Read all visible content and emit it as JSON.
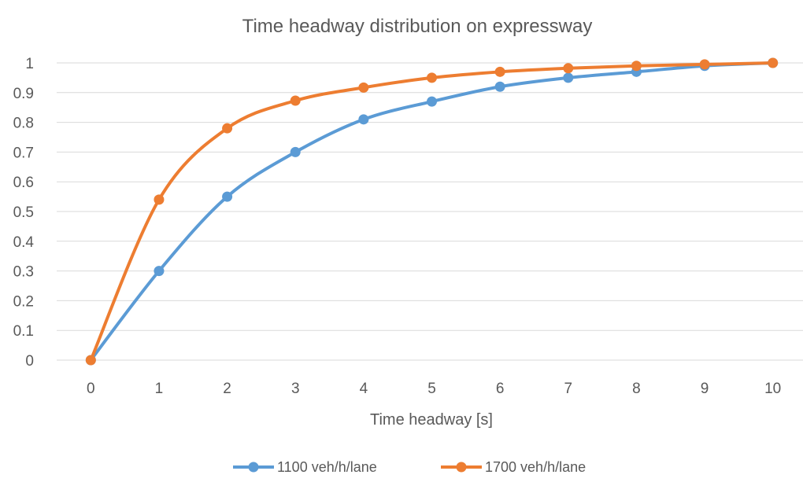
{
  "chart_data": {
    "type": "line",
    "title": "Time headway distribution on expressway",
    "xlabel": "Time headway [s]",
    "ylabel": "",
    "x": [
      0,
      1,
      2,
      3,
      4,
      5,
      6,
      7,
      8,
      9,
      10
    ],
    "ylim": [
      0,
      1
    ],
    "yticks": [
      "0",
      "0.1",
      "0.2",
      "0.3",
      "0.4",
      "0.5",
      "0.6",
      "0.7",
      "0.8",
      "0.9",
      "1"
    ],
    "grid": "horizontal",
    "smooth": true,
    "legend_position": "bottom",
    "series": [
      {
        "name": "1100 veh/h/lane",
        "color": "#5b9bd5",
        "values": [
          0,
          0.3,
          0.55,
          0.7,
          0.81,
          0.87,
          0.92,
          0.95,
          0.97,
          0.99,
          1.0
        ]
      },
      {
        "name": "1700 veh/h/lane",
        "color": "#ed7d31",
        "values": [
          0,
          0.54,
          0.78,
          0.873,
          0.917,
          0.95,
          0.97,
          0.982,
          0.99,
          0.995,
          1.0
        ]
      }
    ]
  }
}
